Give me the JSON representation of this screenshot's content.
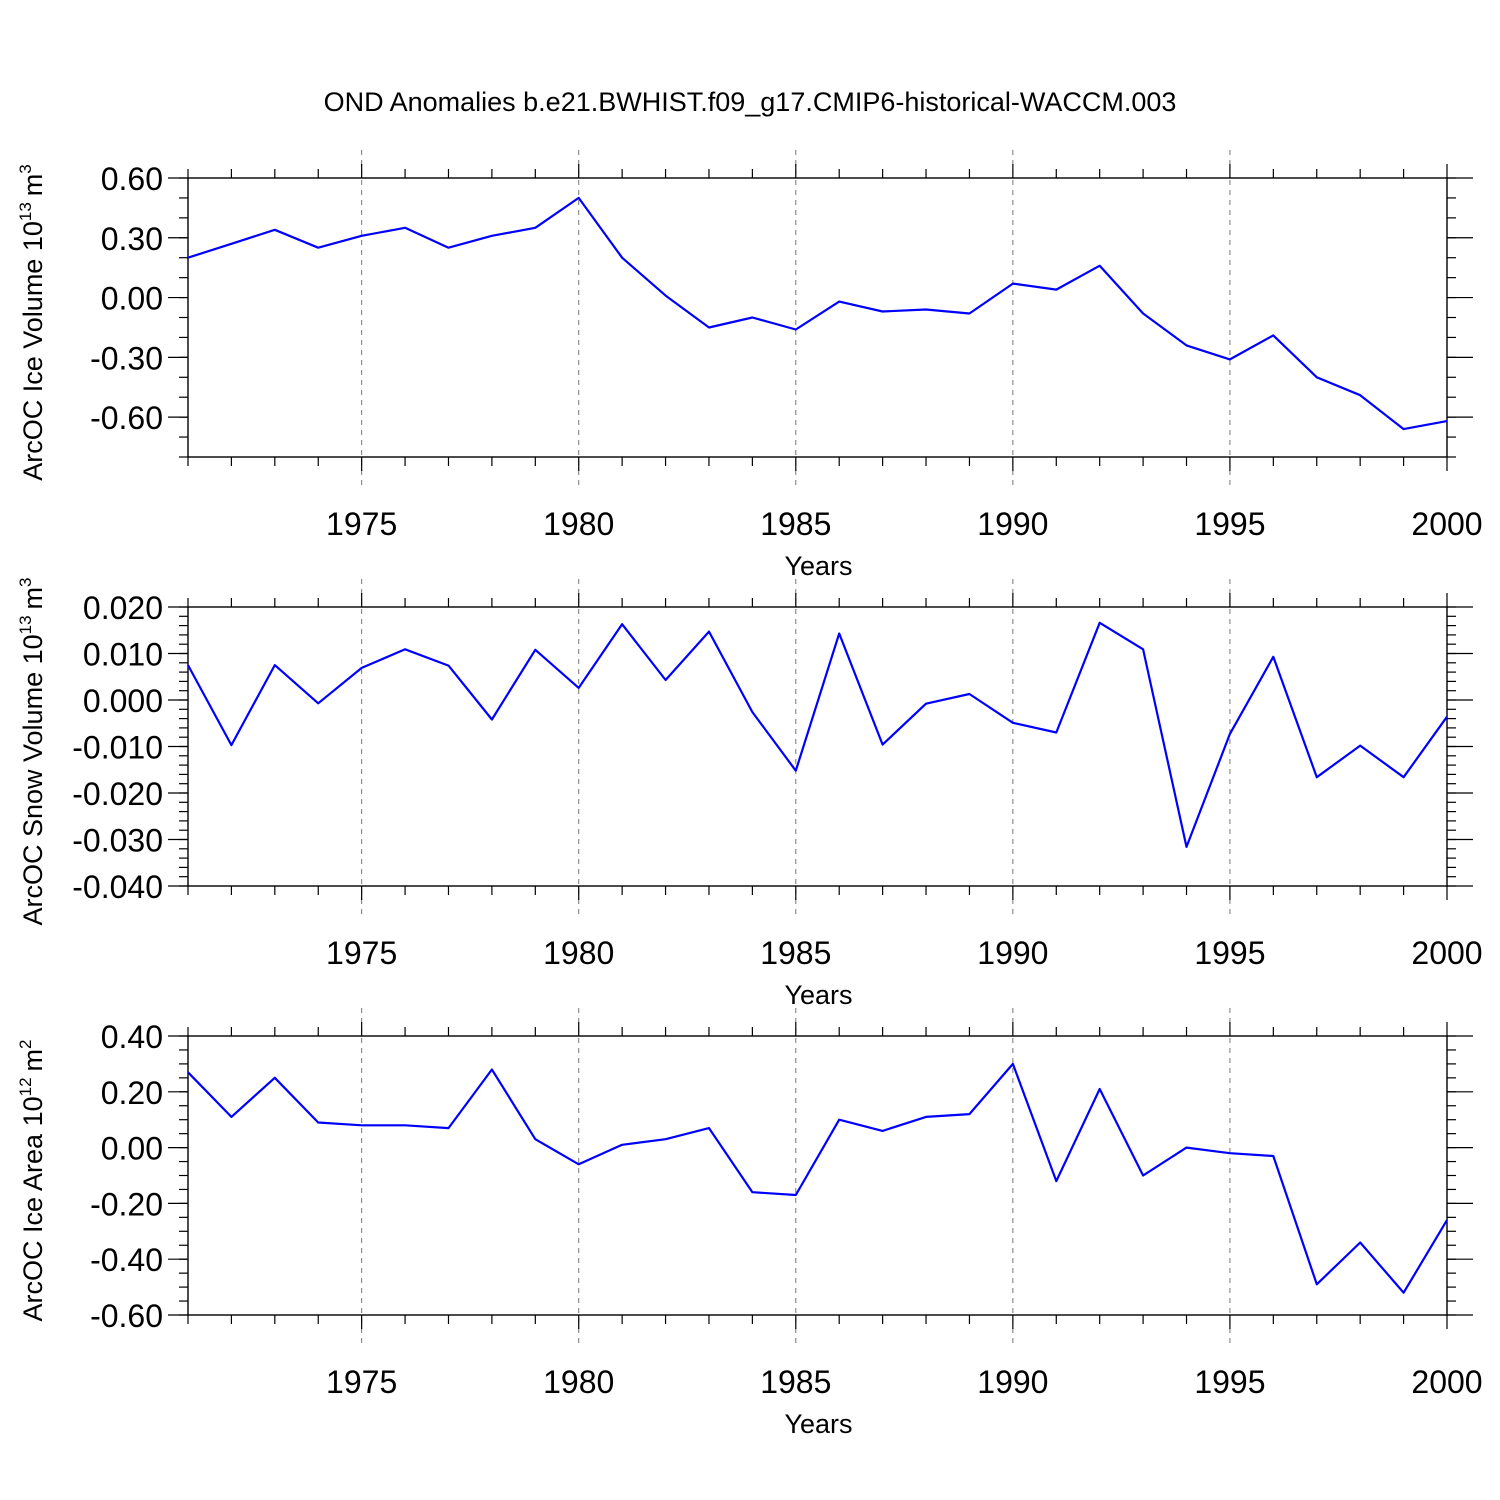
{
  "figure": {
    "title": "OND Anomalies b.e21.BWHIST.f09_g17.CMIP6-historical-WACCM.003"
  },
  "colors": {
    "series": "#0000ff",
    "axes": "#000000",
    "grid": "#777777"
  },
  "chart_data": [
    {
      "type": "line",
      "ylabel": "ArcOC Ice Volume 10",
      "ylabel_exp": "13",
      "ylabel_unit": "m",
      "ylabel_unit_exp": "3",
      "xlabel": "Years",
      "xlim": [
        1971,
        2000
      ],
      "ylim": [
        -0.8,
        0.6
      ],
      "yticks": [
        0.6,
        0.3,
        0.0,
        -0.3,
        -0.6
      ],
      "ytick_labels": [
        "0.60",
        "0.30",
        "0.00",
        "-0.30",
        "-0.60"
      ],
      "y_minor_step": 0.1,
      "xticks": [
        1975,
        1980,
        1985,
        1990,
        1995,
        2000
      ],
      "xtick_labels": [
        "1975",
        "1980",
        "1985",
        "1990",
        "1995",
        "2000"
      ],
      "grid": "x-major-dashed",
      "x": [
        1971,
        1972,
        1973,
        1974,
        1975,
        1976,
        1977,
        1978,
        1979,
        1980,
        1981,
        1982,
        1983,
        1984,
        1985,
        1986,
        1987,
        1988,
        1989,
        1990,
        1991,
        1992,
        1993,
        1994,
        1995,
        1996,
        1997,
        1998,
        1999,
        2000
      ],
      "y": [
        0.2,
        0.27,
        0.34,
        0.25,
        0.31,
        0.35,
        0.25,
        0.31,
        0.35,
        0.5,
        0.2,
        0.01,
        -0.15,
        -0.1,
        -0.16,
        -0.02,
        -0.07,
        -0.06,
        -0.08,
        0.07,
        0.04,
        0.16,
        -0.08,
        -0.24,
        -0.31,
        -0.19,
        -0.4,
        -0.49,
        -0.66,
        -0.62
      ]
    },
    {
      "type": "line",
      "ylabel": "ArcOC Snow Volume 10",
      "ylabel_exp": "13",
      "ylabel_unit": "m",
      "ylabel_unit_exp": "3",
      "xlabel": "Years",
      "xlim": [
        1971,
        2000
      ],
      "ylim": [
        -0.04,
        0.02
      ],
      "yticks": [
        0.02,
        0.01,
        0.0,
        -0.01,
        -0.02,
        -0.03,
        -0.04
      ],
      "ytick_labels": [
        "0.020",
        "0.010",
        "0.000",
        "-0.010",
        "-0.020",
        "-0.030",
        "-0.040"
      ],
      "y_minor_step": 0.002,
      "xticks": [
        1975,
        1980,
        1985,
        1990,
        1995,
        2000
      ],
      "xtick_labels": [
        "1975",
        "1980",
        "1985",
        "1990",
        "1995",
        "2000"
      ],
      "grid": "x-major-dashed",
      "x": [
        1971,
        1972,
        1973,
        1974,
        1975,
        1976,
        1977,
        1978,
        1979,
        1980,
        1981,
        1982,
        1983,
        1984,
        1985,
        1986,
        1987,
        1988,
        1989,
        1990,
        1991,
        1992,
        1993,
        1994,
        1995,
        1996,
        1997,
        1998,
        1999,
        2000
      ],
      "y": [
        0.0075,
        -0.0097,
        0.0075,
        -0.0007,
        0.0069,
        0.0109,
        0.0074,
        -0.0042,
        0.0108,
        0.0026,
        0.0163,
        0.0043,
        0.0147,
        -0.0026,
        -0.0152,
        0.0143,
        -0.0096,
        -0.0008,
        0.0013,
        -0.0049,
        -0.007,
        0.0166,
        0.0109,
        -0.0316,
        -0.0073,
        0.0093,
        -0.0166,
        -0.0098,
        -0.0166,
        -0.0036
      ]
    },
    {
      "type": "line",
      "ylabel": "ArcOC Ice Area 10",
      "ylabel_exp": "12",
      "ylabel_unit": "m",
      "ylabel_unit_exp": "2",
      "xlabel": "Years",
      "xlim": [
        1971,
        2000
      ],
      "ylim": [
        -0.6,
        0.4
      ],
      "yticks": [
        0.4,
        0.2,
        0.0,
        -0.2,
        -0.4,
        -0.6
      ],
      "ytick_labels": [
        "0.40",
        "0.20",
        "0.00",
        "-0.20",
        "-0.40",
        "-0.60"
      ],
      "y_minor_step": 0.05,
      "xticks": [
        1975,
        1980,
        1985,
        1990,
        1995,
        2000
      ],
      "xtick_labels": [
        "1975",
        "1980",
        "1985",
        "1990",
        "1995",
        "2000"
      ],
      "grid": "x-major-dashed",
      "x": [
        1971,
        1972,
        1973,
        1974,
        1975,
        1976,
        1977,
        1978,
        1979,
        1980,
        1981,
        1982,
        1983,
        1984,
        1985,
        1986,
        1987,
        1988,
        1989,
        1990,
        1991,
        1992,
        1993,
        1994,
        1995,
        1996,
        1997,
        1998,
        1999,
        2000
      ],
      "y": [
        0.27,
        0.11,
        0.25,
        0.09,
        0.08,
        0.08,
        0.07,
        0.28,
        0.03,
        -0.06,
        0.01,
        0.03,
        0.07,
        -0.16,
        -0.17,
        0.1,
        0.06,
        0.11,
        0.12,
        0.3,
        -0.12,
        0.21,
        -0.1,
        0.0,
        -0.02,
        -0.03,
        -0.49,
        -0.34,
        -0.52,
        -0.26
      ]
    }
  ]
}
